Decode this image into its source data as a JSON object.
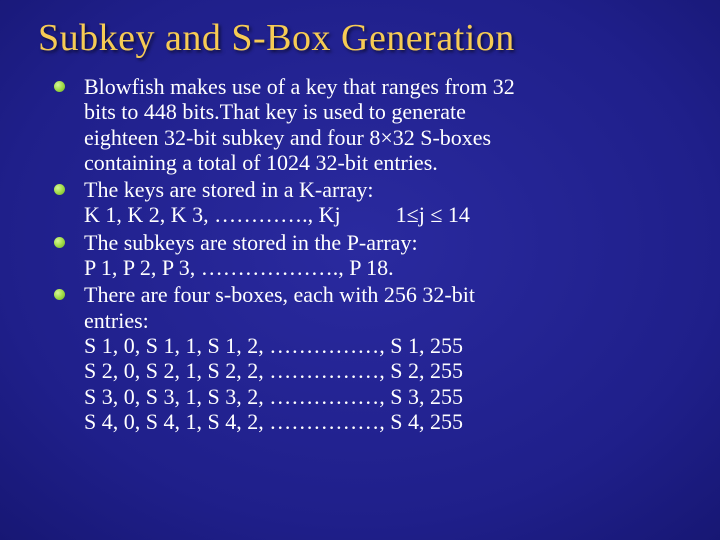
{
  "title": "Subkey and S-Box Generation",
  "bullets": {
    "b1": {
      "line1": "Blowfish makes use of a key that ranges from 32",
      "line2": "bits to 448 bits.That key is used to generate",
      "line3": "eighteen 32-bit subkey and four 8×32 S-boxes",
      "line4": "containing a total of 1024 32-bit entries."
    },
    "b2": {
      "line1": "The keys are stored in a K-array:",
      "line2": "K 1, K 2, K 3, …………., Kj          1≤j ≤ 14"
    },
    "b3": {
      "line1": "The subkeys are stored in the P-array:",
      "line2": "P 1, P 2, P 3, ………………., P 18."
    },
    "b4": {
      "line1": "There are four s-boxes, each with 256 32-bit",
      "line2": "entries:",
      "line3": "S 1, 0, S 1, 1, S 1, 2, ……………, S 1, 255",
      "line4": "S 2, 0, S 2, 1, S 2, 2, ……………, S 2, 255",
      "line5": "S 3, 0, S 3, 1, S 3, 2, ……………, S 3, 255",
      "line6": "S 4, 0, S 4, 1, S 4, 2, ……………, S 4, 255"
    }
  },
  "style": {
    "title_color": "#f6cb54",
    "text_color": "#ffffff",
    "bullet_color": "#a7e04e",
    "background_center": "#2a2a9f",
    "background_edge": "#0a0a44",
    "title_fontsize": 38,
    "body_fontsize": 22,
    "font_family": "Times New Roman"
  }
}
